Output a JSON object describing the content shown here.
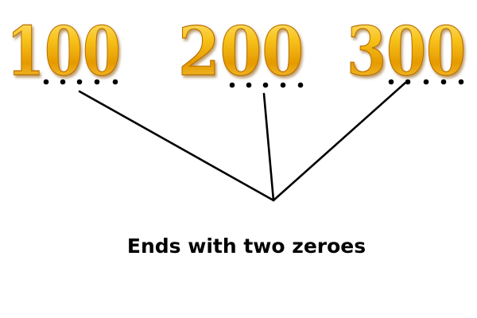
{
  "numbers": [
    {
      "text": "100"
    },
    {
      "text": "200"
    },
    {
      "text": "300"
    }
  ],
  "caption": "Ends with two zeroes",
  "colors": {
    "gold_light": "#ffe98a",
    "gold_mid": "#f5b400",
    "gold_dark": "#b86f00",
    "line": "#000000",
    "dot": "#000000",
    "caption": "#000000"
  }
}
